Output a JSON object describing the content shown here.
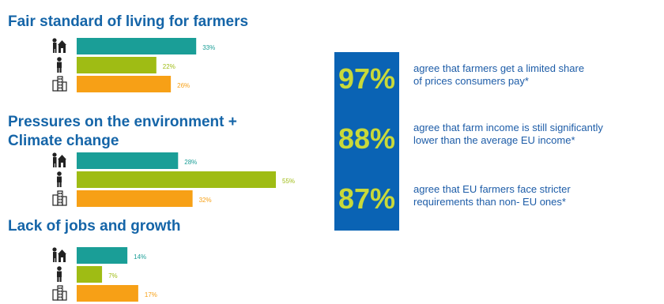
{
  "colors": {
    "title": "#1565a8",
    "box": "#0a63b4",
    "highlight": "#c8d93a",
    "statement": "#1e5da8"
  },
  "icons": [
    "farmer-with-barn-icon",
    "person-icon",
    "city-buildings-icon"
  ],
  "chart_data": [
    {
      "type": "bar",
      "orientation": "horizontal",
      "title": "Fair standard of living for farmers",
      "series": [
        {
          "values": [
            33,
            22,
            26
          ]
        }
      ],
      "colors": [
        "#1a9e97",
        "#9fbc14",
        "#f7a016"
      ],
      "data_labels": [
        "33%",
        "22%",
        "26%"
      ],
      "unit": "%"
    },
    {
      "type": "bar",
      "orientation": "horizontal",
      "title": "Pressures on the environment + Climate change",
      "title_lines": [
        "Pressures on the environment +",
        "Climate change"
      ],
      "series": [
        {
          "values": [
            28,
            55,
            32
          ]
        }
      ],
      "colors": [
        "#1a9e97",
        "#9fbc14",
        "#f7a016"
      ],
      "data_labels": [
        "28%",
        "55%",
        "32%"
      ],
      "unit": "%"
    },
    {
      "type": "bar",
      "orientation": "horizontal",
      "title": "Lack of jobs and growth",
      "series": [
        {
          "values": [
            14,
            7,
            17
          ]
        }
      ],
      "colors": [
        "#1a9e97",
        "#9fbc14",
        "#f7a016"
      ],
      "data_labels": [
        "14%",
        "7%",
        "17%"
      ],
      "unit": "%"
    }
  ],
  "stats": [
    {
      "percent": "97%",
      "line1": "agree that farmers get a limited share",
      "line2": "of prices consumers pay*"
    },
    {
      "percent": "88%",
      "line1": "agree that farm income is still significantly",
      "line2": "lower than the average EU income*"
    },
    {
      "percent": "87%",
      "line1": "agree that EU farmers face stricter",
      "line2": "requirements than non- EU ones*"
    }
  ]
}
